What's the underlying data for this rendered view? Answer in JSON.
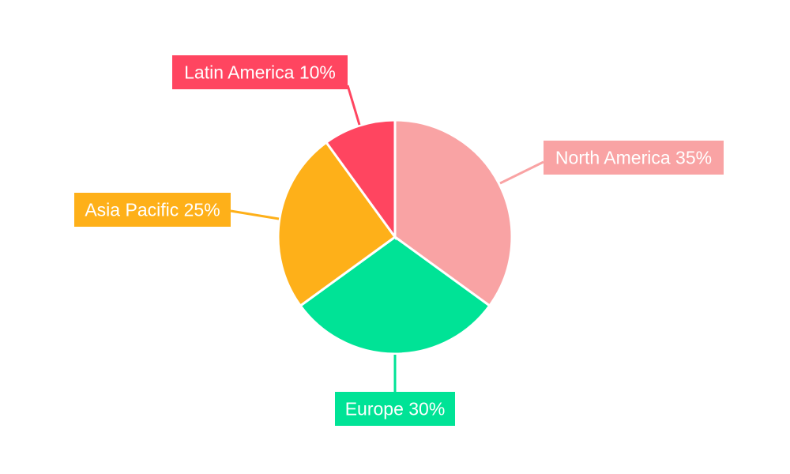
{
  "chart_data": {
    "type": "pie",
    "categories": [
      "North America",
      "Europe",
      "Asia Pacific",
      "Latin America"
    ],
    "values": [
      35,
      30,
      25,
      10
    ],
    "colors": [
      "#F9A3A4",
      "#00E396",
      "#FEB019",
      "#FF4560"
    ],
    "labels": [
      "North America 35%",
      "Europe 30%",
      "Asia Pacific 25%",
      "Latin America 10%"
    ],
    "start_angle": "top",
    "direction": "clockwise",
    "legend": "none"
  }
}
